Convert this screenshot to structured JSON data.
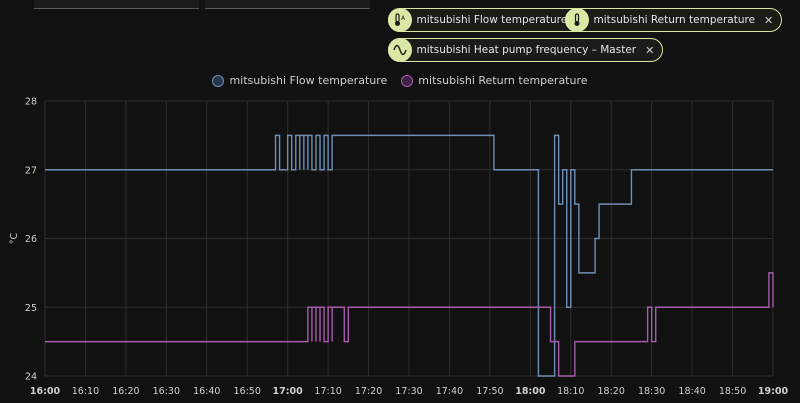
{
  "chips": [
    {
      "label": "mitsubishi Flow temperature",
      "icon": "thermometer-a-icon",
      "remove": "✕"
    },
    {
      "label": "mitsubishi Return temperature",
      "icon": "thermometer-icon",
      "remove": "✕"
    },
    {
      "label": "mitsubishi Heat pump frequency – Master",
      "icon": "sine-wave-icon",
      "remove": "✕"
    }
  ],
  "colors": {
    "chip_border": "#d9e8a4",
    "flow": "#6e8fb5",
    "return": "#a75bab",
    "grid": "#2d2d2d",
    "background": "#111111"
  },
  "chart_data": {
    "type": "line",
    "step": true,
    "ylabel": "°C",
    "ylim": [
      24,
      28
    ],
    "y_ticks": [
      "28",
      "27",
      "26",
      "25",
      "24"
    ],
    "x_range": [
      "16:00",
      "19:00"
    ],
    "x_ticks": [
      "16:00",
      "16:10",
      "16:20",
      "16:30",
      "16:40",
      "16:50",
      "17:00",
      "17:10",
      "17:20",
      "17:30",
      "17:40",
      "17:50",
      "18:00",
      "18:10",
      "18:20",
      "18:30",
      "18:40",
      "18:50",
      "19:00"
    ],
    "x_ticks_bold": [
      "16:00",
      "17:00",
      "18:00",
      "19:00"
    ],
    "legend_position": "top-center",
    "grid": true,
    "series": [
      {
        "name": "mitsubishi Flow temperature",
        "color": "#6e8fb5",
        "points": [
          [
            "16:00",
            27
          ],
          [
            "16:57",
            27.5
          ],
          [
            "16:58",
            27
          ],
          [
            "17:00",
            27.5
          ],
          [
            "17:01",
            27
          ],
          [
            "17:02",
            27.5
          ],
          [
            "17:03",
            27
          ],
          [
            "17:03",
            27.5
          ],
          [
            "17:04",
            27
          ],
          [
            "17:04",
            27.5
          ],
          [
            "17:05",
            27
          ],
          [
            "17:05",
            27.5
          ],
          [
            "17:06",
            27
          ],
          [
            "17:07",
            27.5
          ],
          [
            "17:08",
            27
          ],
          [
            "17:09",
            27.5
          ],
          [
            "17:10",
            27
          ],
          [
            "17:11",
            27.5
          ],
          [
            "17:51",
            27
          ],
          [
            "18:02",
            26.5
          ],
          [
            "18:02",
            24
          ],
          [
            "18:06",
            27
          ],
          [
            "18:06",
            27.5
          ],
          [
            "18:07",
            26.5
          ],
          [
            "18:08",
            27
          ],
          [
            "18:09",
            25
          ],
          [
            "18:10",
            27
          ],
          [
            "18:11",
            26.5
          ],
          [
            "18:12",
            25.5
          ],
          [
            "18:16",
            26
          ],
          [
            "18:17",
            26.5
          ],
          [
            "18:25",
            27
          ],
          [
            "19:00",
            27
          ]
        ]
      },
      {
        "name": "mitsubishi Return temperature",
        "color": "#a75bab",
        "points": [
          [
            "16:00",
            24.5
          ],
          [
            "17:05",
            25
          ],
          [
            "17:06",
            24.5
          ],
          [
            "17:06",
            25
          ],
          [
            "17:07",
            24.5
          ],
          [
            "17:07",
            25
          ],
          [
            "17:08",
            24.5
          ],
          [
            "17:08",
            25
          ],
          [
            "17:09",
            24.5
          ],
          [
            "17:10",
            25
          ],
          [
            "17:11",
            24.5
          ],
          [
            "17:11",
            25
          ],
          [
            "17:14",
            24.5
          ],
          [
            "17:15",
            25
          ],
          [
            "18:05",
            24.5
          ],
          [
            "18:07",
            24
          ],
          [
            "18:11",
            24.5
          ],
          [
            "18:14",
            24.5
          ],
          [
            "18:29",
            25
          ],
          [
            "18:30",
            24.5
          ],
          [
            "18:31",
            25
          ],
          [
            "18:59",
            25.5
          ],
          [
            "19:00",
            25
          ]
        ]
      }
    ]
  }
}
